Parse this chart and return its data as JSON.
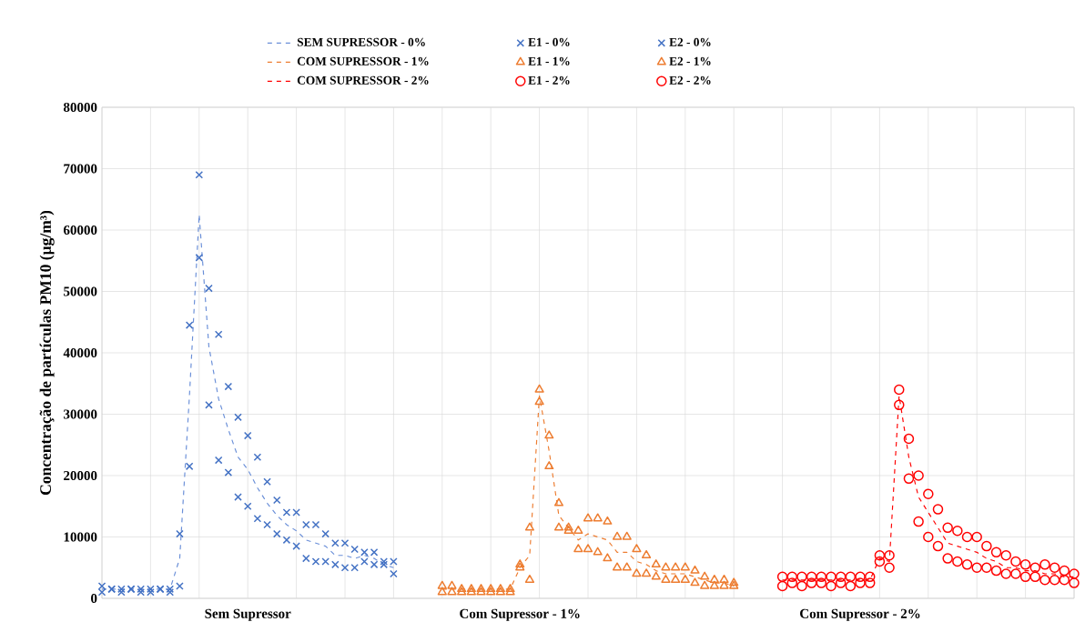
{
  "chart_data": {
    "type": "scatter",
    "ylabel": "Concentração de partículas PM10 (µg/m³)",
    "categories": [
      null,
      null,
      null,
      null,
      null,
      null,
      null,
      null,
      null,
      null,
      null,
      null,
      null,
      null,
      null,
      "Sem Supressor",
      null,
      null,
      null,
      null,
      null,
      null,
      null,
      null,
      null,
      null,
      null,
      null,
      null,
      null,
      null,
      null,
      null,
      null,
      null,
      null,
      null,
      null,
      null,
      null,
      null,
      null,
      null,
      "Com Supressor - 1%",
      null,
      null,
      null,
      null,
      null,
      null,
      null,
      null,
      null,
      null,
      null,
      null,
      null,
      null,
      null,
      null,
      null,
      null,
      null,
      null,
      null,
      null,
      null,
      null,
      null,
      null,
      null,
      null,
      null,
      null,
      null,
      null,
      null,
      null,
      "Com Supressor - 2%",
      null,
      null,
      null,
      null,
      null,
      null,
      null,
      null,
      null,
      null,
      null,
      null,
      null,
      null,
      null,
      null,
      null,
      null,
      null,
      null,
      null,
      null
    ],
    "ylim": [
      0,
      80000
    ],
    "yticks": [
      0,
      10000,
      20000,
      30000,
      40000,
      50000,
      60000,
      70000,
      80000
    ],
    "grid": true,
    "legend": "top",
    "series": [
      {
        "name": "SEM SUPRESSOR - 0%",
        "type": "line",
        "line_style": "dashed",
        "marker": "none",
        "color": "#6a8fd8",
        "values": [
          1500,
          1500,
          1500,
          1500,
          1500,
          1500,
          1500,
          1500,
          6500,
          33000,
          62500,
          41000,
          32500,
          27500,
          23000,
          21000,
          18000,
          15500,
          13500,
          12000,
          11000,
          9500,
          9000,
          8500,
          7000,
          7000,
          6500,
          7000,
          6500,
          5500,
          5000,
          null,
          null,
          null,
          null,
          null,
          null,
          null,
          null,
          null,
          null,
          null,
          null,
          null,
          null,
          null,
          null,
          null,
          null,
          null,
          null,
          null,
          null,
          null,
          null,
          null,
          null,
          null,
          null,
          null,
          null,
          null,
          null,
          null,
          null,
          null,
          null,
          null,
          null,
          null,
          null,
          null,
          null,
          null,
          null,
          null,
          null,
          null,
          null,
          null,
          null,
          null,
          null,
          null,
          null,
          null,
          null,
          null,
          null,
          null,
          null,
          null,
          null,
          null,
          null,
          null,
          null,
          null,
          null,
          null,
          null
        ]
      },
      {
        "name": "E1 - 0%",
        "marker": "cross",
        "color": "#4472c4",
        "values": [
          2000,
          1500,
          1500,
          1500,
          1500,
          1500,
          1500,
          1500,
          10500,
          44500,
          69000,
          50500,
          43000,
          34500,
          29500,
          26500,
          23000,
          19000,
          16000,
          14000,
          14000,
          12000,
          12000,
          10500,
          9000,
          9000,
          8000,
          7500,
          7500,
          6000,
          6000,
          null,
          null,
          null,
          null,
          null,
          null,
          null,
          null,
          null,
          null,
          null,
          null,
          null,
          null,
          null,
          null,
          null,
          null,
          null,
          null,
          null,
          null,
          null,
          null,
          null,
          null,
          null,
          null,
          null,
          null,
          null,
          null,
          null,
          null,
          null,
          null,
          null,
          null,
          null,
          null,
          null,
          null,
          null,
          null,
          null,
          null,
          null,
          null,
          null,
          null,
          null,
          null,
          null,
          null,
          null,
          null,
          null,
          null,
          null,
          null,
          null,
          null,
          null,
          null,
          null,
          null,
          null,
          null,
          null,
          null
        ]
      },
      {
        "name": "E2 - 0%",
        "marker": "cross",
        "color": "#4472c4",
        "values": [
          1000,
          1500,
          1000,
          1500,
          1000,
          1000,
          1500,
          1000,
          2000,
          21500,
          55500,
          31500,
          22500,
          20500,
          16500,
          15000,
          13000,
          12000,
          10500,
          9500,
          8500,
          6500,
          6000,
          6000,
          5500,
          5000,
          5000,
          6000,
          5500,
          5500,
          4000,
          null,
          null,
          null,
          null,
          null,
          null,
          null,
          null,
          null,
          null,
          null,
          null,
          null,
          null,
          null,
          null,
          null,
          null,
          null,
          null,
          null,
          null,
          null,
          null,
          null,
          null,
          null,
          null,
          null,
          null,
          null,
          null,
          null,
          null,
          null,
          null,
          null,
          null,
          null,
          null,
          null,
          null,
          null,
          null,
          null,
          null,
          null,
          null,
          null,
          null,
          null,
          null,
          null,
          null,
          null,
          null,
          null,
          null,
          null,
          null,
          null,
          null,
          null,
          null,
          null,
          null,
          null,
          null,
          null,
          null
        ]
      },
      {
        "name": "COM SUPRESSOR - 1%",
        "type": "line",
        "line_style": "dashed",
        "marker": "none",
        "color": "#ed7d31",
        "values": [
          null,
          null,
          null,
          null,
          null,
          null,
          null,
          null,
          null,
          null,
          null,
          null,
          null,
          null,
          null,
          null,
          null,
          null,
          null,
          null,
          null,
          null,
          null,
          null,
          null,
          null,
          null,
          null,
          null,
          null,
          null,
          null,
          null,
          null,
          null,
          1500,
          1500,
          1500,
          1500,
          1500,
          1500,
          1500,
          1500,
          5000,
          7000,
          33000,
          24000,
          13500,
          11500,
          9500,
          10500,
          10000,
          9500,
          7500,
          7500,
          6000,
          5500,
          4500,
          4000,
          4000,
          4000,
          3500,
          3000,
          2500,
          2500,
          2000,
          null,
          null,
          null,
          null,
          null,
          null,
          null,
          null,
          null,
          null,
          null,
          null,
          null,
          null,
          null,
          null,
          null,
          null,
          null,
          null,
          null,
          null,
          null,
          null,
          null,
          null,
          null,
          null,
          null,
          null,
          null,
          null,
          null,
          null,
          null
        ]
      },
      {
        "name": "E1 - 1%",
        "marker": "triangle",
        "color": "#ed7d31",
        "values": [
          null,
          null,
          null,
          null,
          null,
          null,
          null,
          null,
          null,
          null,
          null,
          null,
          null,
          null,
          null,
          null,
          null,
          null,
          null,
          null,
          null,
          null,
          null,
          null,
          null,
          null,
          null,
          null,
          null,
          null,
          null,
          null,
          null,
          null,
          null,
          2000,
          2000,
          1500,
          1500,
          1500,
          1500,
          1500,
          1500,
          5500,
          11500,
          34000,
          26500,
          15500,
          11500,
          11000,
          13000,
          13000,
          12500,
          10000,
          10000,
          8000,
          7000,
          5500,
          5000,
          5000,
          5000,
          4500,
          3500,
          3000,
          3000,
          2500,
          null,
          null,
          null,
          null,
          null,
          null,
          null,
          null,
          null,
          null,
          null,
          null,
          null,
          null,
          null,
          null,
          null,
          null,
          null,
          null,
          null,
          null,
          null,
          null,
          null,
          null,
          null,
          null,
          null,
          null,
          null,
          null,
          null,
          null,
          null
        ]
      },
      {
        "name": "E2 - 1%",
        "marker": "triangle",
        "color": "#ed7d31",
        "values": [
          null,
          null,
          null,
          null,
          null,
          null,
          null,
          null,
          null,
          null,
          null,
          null,
          null,
          null,
          null,
          null,
          null,
          null,
          null,
          null,
          null,
          null,
          null,
          null,
          null,
          null,
          null,
          null,
          null,
          null,
          null,
          null,
          null,
          null,
          null,
          1000,
          1000,
          1000,
          1000,
          1000,
          1000,
          1000,
          1000,
          5000,
          3000,
          32000,
          21500,
          11500,
          11000,
          8000,
          8000,
          7500,
          6500,
          5000,
          5000,
          4000,
          4000,
          3500,
          3000,
          3000,
          3000,
          2500,
          2000,
          2000,
          2000,
          2000,
          null,
          null,
          null,
          null,
          null,
          null,
          null,
          null,
          null,
          null,
          null,
          null,
          null,
          null,
          null,
          null,
          null,
          null,
          null,
          null,
          null,
          null,
          null,
          null,
          null,
          null,
          null,
          null,
          null,
          null,
          null,
          null,
          null,
          null,
          null
        ]
      },
      {
        "name": "COM SUPRESSOR - 2%",
        "type": "line",
        "line_style": "dashed",
        "marker": "none",
        "color": "#ff0000",
        "values": [
          null,
          null,
          null,
          null,
          null,
          null,
          null,
          null,
          null,
          null,
          null,
          null,
          null,
          null,
          null,
          null,
          null,
          null,
          null,
          null,
          null,
          null,
          null,
          null,
          null,
          null,
          null,
          null,
          null,
          null,
          null,
          null,
          null,
          null,
          null,
          null,
          null,
          null,
          null,
          null,
          null,
          null,
          null,
          null,
          null,
          null,
          null,
          null,
          null,
          null,
          null,
          null,
          null,
          null,
          null,
          null,
          null,
          null,
          null,
          null,
          null,
          null,
          null,
          null,
          null,
          null,
          null,
          null,
          null,
          null,
          3000,
          3000,
          3000,
          3000,
          3000,
          3000,
          3000,
          3000,
          3000,
          3000,
          6500,
          6000,
          33000,
          23000,
          16500,
          14000,
          11500,
          9000,
          8500,
          8000,
          7500,
          6500,
          6000,
          5000,
          5000,
          4500,
          4500,
          4000,
          4000,
          3500,
          3500
        ]
      },
      {
        "name": "E1 - 2%",
        "marker": "circle",
        "color": "#ff0000",
        "values": [
          null,
          null,
          null,
          null,
          null,
          null,
          null,
          null,
          null,
          null,
          null,
          null,
          null,
          null,
          null,
          null,
          null,
          null,
          null,
          null,
          null,
          null,
          null,
          null,
          null,
          null,
          null,
          null,
          null,
          null,
          null,
          null,
          null,
          null,
          null,
          null,
          null,
          null,
          null,
          null,
          null,
          null,
          null,
          null,
          null,
          null,
          null,
          null,
          null,
          null,
          null,
          null,
          null,
          null,
          null,
          null,
          null,
          null,
          null,
          null,
          null,
          null,
          null,
          null,
          null,
          null,
          null,
          null,
          null,
          null,
          3500,
          3500,
          3500,
          3500,
          3500,
          3500,
          3500,
          3500,
          3500,
          3500,
          7000,
          7000,
          34000,
          26000,
          20000,
          17000,
          14500,
          11500,
          11000,
          10000,
          10000,
          8500,
          7500,
          7000,
          6000,
          5500,
          5000,
          5500,
          5000,
          4500,
          4000
        ]
      },
      {
        "name": "E2 - 2%",
        "marker": "circle",
        "color": "#ff0000",
        "values": [
          null,
          null,
          null,
          null,
          null,
          null,
          null,
          null,
          null,
          null,
          null,
          null,
          null,
          null,
          null,
          null,
          null,
          null,
          null,
          null,
          null,
          null,
          null,
          null,
          null,
          null,
          null,
          null,
          null,
          null,
          null,
          null,
          null,
          null,
          null,
          null,
          null,
          null,
          null,
          null,
          null,
          null,
          null,
          null,
          null,
          null,
          null,
          null,
          null,
          null,
          null,
          null,
          null,
          null,
          null,
          null,
          null,
          null,
          null,
          null,
          null,
          null,
          null,
          null,
          null,
          null,
          null,
          null,
          null,
          null,
          2000,
          2500,
          2000,
          2500,
          2500,
          2000,
          2500,
          2000,
          2500,
          2500,
          6000,
          5000,
          31500,
          19500,
          12500,
          10000,
          8500,
          6500,
          6000,
          5500,
          5000,
          5000,
          4500,
          4000,
          4000,
          3500,
          3500,
          3000,
          3000,
          3000,
          2500
        ]
      }
    ]
  }
}
